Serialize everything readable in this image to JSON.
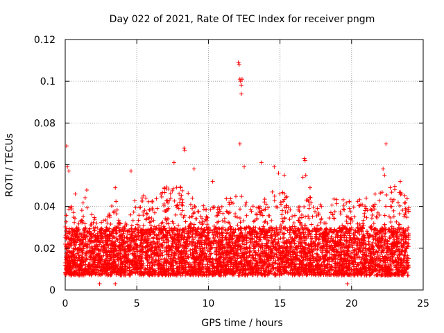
{
  "chart_data": {
    "type": "scatter",
    "title": "Day 022 of 2021, Rate Of TEC Index for receiver pngm",
    "xlabel": "GPS time / hours",
    "ylabel": "ROTI / TECUs",
    "xlim": [
      0,
      25
    ],
    "ylim": [
      0,
      0.12
    ],
    "grid": true,
    "marker": "+",
    "series_color": "#ff0000",
    "x_ticks": [
      {
        "value": 0,
        "label": "0"
      },
      {
        "value": 5,
        "label": "5"
      },
      {
        "value": 10,
        "label": "10"
      },
      {
        "value": 15,
        "label": "15"
      },
      {
        "value": 20,
        "label": "20"
      },
      {
        "value": 25,
        "label": "25"
      }
    ],
    "y_ticks": [
      {
        "value": 0,
        "label": "0"
      },
      {
        "value": 0.02,
        "label": "0.02"
      },
      {
        "value": 0.04,
        "label": "0.04"
      },
      {
        "value": 0.06,
        "label": "0.06"
      },
      {
        "value": 0.08,
        "label": "0.08"
      },
      {
        "value": 0.1,
        "label": "0.1"
      },
      {
        "value": 0.12,
        "label": "0.12"
      }
    ],
    "density": {
      "x_range_hours": [
        0,
        24
      ],
      "points_per_hour": 240,
      "baseline_range": [
        0.007,
        0.03
      ],
      "envelope": [
        {
          "hour": 0,
          "max": 0.042
        },
        {
          "hour": 1,
          "max": 0.038
        },
        {
          "hour": 1.5,
          "max": 0.048
        },
        {
          "hour": 2,
          "max": 0.035
        },
        {
          "hour": 3,
          "max": 0.036
        },
        {
          "hour": 3.5,
          "max": 0.045
        },
        {
          "hour": 4,
          "max": 0.03
        },
        {
          "hour": 5,
          "max": 0.05
        },
        {
          "hour": 6,
          "max": 0.042
        },
        {
          "hour": 7,
          "max": 0.05
        },
        {
          "hour": 8,
          "max": 0.05
        },
        {
          "hour": 9,
          "max": 0.045
        },
        {
          "hour": 10,
          "max": 0.04
        },
        {
          "hour": 11,
          "max": 0.045
        },
        {
          "hour": 12,
          "max": 0.045
        },
        {
          "hour": 12.5,
          "max": 0.05
        },
        {
          "hour": 13,
          "max": 0.04
        },
        {
          "hour": 14,
          "max": 0.045
        },
        {
          "hour": 15,
          "max": 0.05
        },
        {
          "hour": 16,
          "max": 0.04
        },
        {
          "hour": 17,
          "max": 0.045
        },
        {
          "hour": 18,
          "max": 0.04
        },
        {
          "hour": 19,
          "max": 0.045
        },
        {
          "hour": 20,
          "max": 0.042
        },
        {
          "hour": 21,
          "max": 0.045
        },
        {
          "hour": 22,
          "max": 0.048
        },
        {
          "hour": 23,
          "max": 0.05
        },
        {
          "hour": 24,
          "max": 0.045
        }
      ]
    },
    "points": [
      {
        "x": 0.1,
        "y": 0.069
      },
      {
        "x": 0.15,
        "y": 0.059
      },
      {
        "x": 0.25,
        "y": 0.057
      },
      {
        "x": 0.7,
        "y": 0.046
      },
      {
        "x": 3.5,
        "y": 0.049
      },
      {
        "x": 4.6,
        "y": 0.057
      },
      {
        "x": 7.6,
        "y": 0.061
      },
      {
        "x": 8.3,
        "y": 0.068
      },
      {
        "x": 8.35,
        "y": 0.067
      },
      {
        "x": 9.0,
        "y": 0.058
      },
      {
        "x": 10.3,
        "y": 0.052
      },
      {
        "x": 12.1,
        "y": 0.109
      },
      {
        "x": 12.15,
        "y": 0.108
      },
      {
        "x": 12.2,
        "y": 0.101
      },
      {
        "x": 12.25,
        "y": 0.1
      },
      {
        "x": 12.3,
        "y": 0.098
      },
      {
        "x": 12.35,
        "y": 0.101
      },
      {
        "x": 12.3,
        "y": 0.094
      },
      {
        "x": 12.2,
        "y": 0.07
      },
      {
        "x": 12.5,
        "y": 0.059
      },
      {
        "x": 13.7,
        "y": 0.061
      },
      {
        "x": 14.6,
        "y": 0.059
      },
      {
        "x": 14.9,
        "y": 0.056
      },
      {
        "x": 15.3,
        "y": 0.055
      },
      {
        "x": 16.7,
        "y": 0.063
      },
      {
        "x": 16.75,
        "y": 0.062
      },
      {
        "x": 16.8,
        "y": 0.055
      },
      {
        "x": 16.6,
        "y": 0.054
      },
      {
        "x": 17.1,
        "y": 0.049
      },
      {
        "x": 22.4,
        "y": 0.07
      },
      {
        "x": 22.2,
        "y": 0.058
      },
      {
        "x": 22.3,
        "y": 0.055
      },
      {
        "x": 23.4,
        "y": 0.052
      },
      {
        "x": 19.7,
        "y": 0.003
      },
      {
        "x": 2.4,
        "y": 0.003
      },
      {
        "x": 3.5,
        "y": 0.003
      }
    ]
  }
}
